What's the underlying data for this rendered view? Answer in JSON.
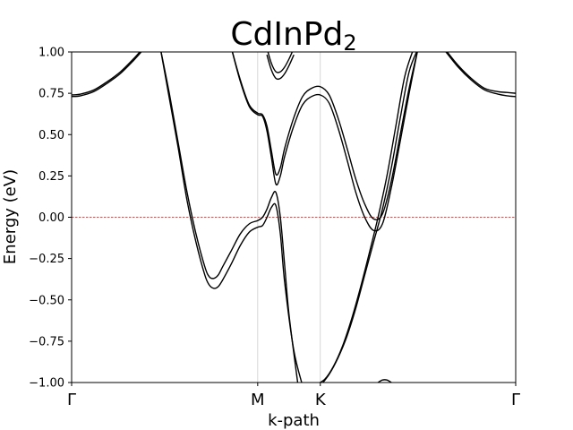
{
  "chart_data": {
    "type": "line",
    "title": "CdInPd",
    "title_subscript": "2",
    "xlabel": "k-path",
    "ylabel": "Energy (eV)",
    "ylim": [
      -1.0,
      1.0
    ],
    "xlim": [
      0,
      1
    ],
    "grid": false,
    "fermi_level": 0.0,
    "fermi_line_color": "#ff0000",
    "kline_color": "#cccccc",
    "band_color": "#000000",
    "high_symmetry_points": [
      {
        "label": "Γ",
        "x": 0.0
      },
      {
        "label": "M",
        "x": 0.419
      },
      {
        "label": "K",
        "x": 0.56
      },
      {
        "label": "Γ",
        "x": 1.0
      }
    ],
    "yticks": [
      {
        "value": -1.0,
        "label": "−1.00"
      },
      {
        "value": -0.75,
        "label": "−0.75"
      },
      {
        "value": -0.5,
        "label": "−0.50"
      },
      {
        "value": -0.25,
        "label": "−0.25"
      },
      {
        "value": 0.0,
        "label": "0.00"
      },
      {
        "value": 0.25,
        "label": "0.25"
      },
      {
        "value": 0.5,
        "label": "0.50"
      },
      {
        "value": 0.75,
        "label": "0.75"
      },
      {
        "value": 1.0,
        "label": "1.00"
      }
    ],
    "series": [
      {
        "x": [
          0.0,
          0.02,
          0.05,
          0.08,
          0.11,
          0.14,
          0.16
        ],
        "y": [
          0.74,
          0.745,
          0.77,
          0.82,
          0.88,
          0.96,
          1.02
        ]
      },
      {
        "x": [
          0.0,
          0.02,
          0.05,
          0.08,
          0.11,
          0.14,
          0.16
        ],
        "y": [
          0.73,
          0.735,
          0.76,
          0.81,
          0.87,
          0.95,
          1.01
        ]
      },
      {
        "x": [
          0.2,
          0.22,
          0.24,
          0.26,
          0.28,
          0.3,
          0.31,
          0.32,
          0.33,
          0.34,
          0.36,
          0.38,
          0.4,
          0.419,
          0.43,
          0.44,
          0.45,
          0.46,
          0.47,
          0.48,
          0.49,
          0.51,
          0.53,
          0.56,
          0.59,
          0.61
        ],
        "y": [
          1.02,
          0.75,
          0.45,
          0.15,
          -0.1,
          -0.3,
          -0.36,
          -0.37,
          -0.35,
          -0.3,
          -0.2,
          -0.1,
          -0.04,
          -0.02,
          0.0,
          0.05,
          0.12,
          0.15,
          0.0,
          -0.3,
          -0.6,
          -1.02,
          null,
          null,
          null,
          null
        ]
      },
      {
        "x": [
          0.2,
          0.22,
          0.24,
          0.26,
          0.28,
          0.3,
          0.31,
          0.32,
          0.33,
          0.34,
          0.36,
          0.38,
          0.4,
          0.419,
          0.43,
          0.44,
          0.45,
          0.46,
          0.47,
          0.48,
          0.5,
          0.52
        ],
        "y": [
          1.02,
          0.72,
          0.42,
          0.1,
          -0.15,
          -0.35,
          -0.41,
          -0.43,
          -0.42,
          -0.38,
          -0.28,
          -0.17,
          -0.09,
          -0.06,
          -0.05,
          0.0,
          0.06,
          0.07,
          -0.1,
          -0.4,
          -0.8,
          -1.02
        ]
      },
      {
        "x": [
          0.36,
          0.38,
          0.4,
          0.419,
          0.43,
          0.44,
          0.45,
          0.46,
          0.47,
          0.48,
          0.5,
          0.52,
          0.54,
          0.56,
          0.58,
          0.6,
          0.62,
          0.64,
          0.66,
          0.68,
          0.7,
          0.72,
          0.74,
          0.76,
          0.78,
          0.8
        ],
        "y": [
          1.02,
          0.83,
          0.68,
          0.63,
          0.62,
          0.55,
          0.4,
          0.26,
          0.3,
          0.42,
          0.6,
          0.73,
          0.78,
          0.79,
          0.74,
          0.6,
          0.42,
          0.23,
          0.08,
          -0.01,
          0.02,
          0.22,
          0.5,
          0.78,
          1.02,
          null
        ]
      },
      {
        "x": [
          0.36,
          0.38,
          0.4,
          0.419,
          0.43,
          0.44,
          0.45,
          0.46,
          0.47,
          0.48,
          0.5,
          0.52,
          0.54,
          0.56,
          0.58,
          0.6,
          0.62,
          0.64,
          0.66,
          0.68,
          0.7,
          0.72,
          0.74,
          0.76,
          0.78
        ],
        "y": [
          1.02,
          0.82,
          0.67,
          0.62,
          0.61,
          0.52,
          0.36,
          0.2,
          0.25,
          0.37,
          0.55,
          0.68,
          0.73,
          0.74,
          0.69,
          0.54,
          0.35,
          0.15,
          0.0,
          -0.08,
          -0.04,
          0.18,
          0.46,
          0.75,
          1.02
        ]
      },
      {
        "x": [
          0.44,
          0.45,
          0.46,
          0.47,
          0.48,
          0.49,
          0.5
        ],
        "y": [
          1.02,
          0.93,
          0.88,
          0.88,
          0.91,
          0.96,
          1.02
        ]
      },
      {
        "x": [
          0.44,
          0.45,
          0.46,
          0.47,
          0.48,
          0.49,
          0.5
        ],
        "y": [
          0.98,
          0.89,
          0.84,
          0.84,
          0.87,
          0.92,
          0.98
        ]
      },
      {
        "x": [
          0.56,
          0.58,
          0.6,
          0.62,
          0.64,
          0.66,
          0.68,
          0.7,
          0.72,
          0.74,
          0.76,
          0.78
        ],
        "y": [
          -1.02,
          -0.95,
          -0.85,
          -0.72,
          -0.55,
          -0.35,
          -0.15,
          0.05,
          0.3,
          0.6,
          0.88,
          1.02
        ]
      },
      {
        "x": [
          0.545,
          0.57,
          0.59,
          0.61,
          0.63,
          0.65,
          0.67,
          0.69,
          0.71,
          0.73,
          0.75,
          0.77
        ],
        "y": [
          -1.02,
          -0.98,
          -0.9,
          -0.78,
          -0.62,
          -0.43,
          -0.22,
          0.0,
          0.25,
          0.55,
          0.85,
          1.02
        ]
      },
      {
        "x": [
          0.69,
          0.7,
          0.71,
          0.72
        ],
        "y": [
          -1.0,
          -0.985,
          -0.985,
          -1.0
        ]
      },
      {
        "x": [
          0.84,
          0.87,
          0.9,
          0.93,
          0.96,
          0.98,
          1.0
        ],
        "y": [
          1.02,
          0.92,
          0.84,
          0.78,
          0.76,
          0.755,
          0.75
        ]
      },
      {
        "x": [
          0.84,
          0.87,
          0.9,
          0.93,
          0.96,
          0.98,
          1.0
        ],
        "y": [
          1.01,
          0.91,
          0.83,
          0.77,
          0.745,
          0.735,
          0.73
        ]
      }
    ]
  }
}
